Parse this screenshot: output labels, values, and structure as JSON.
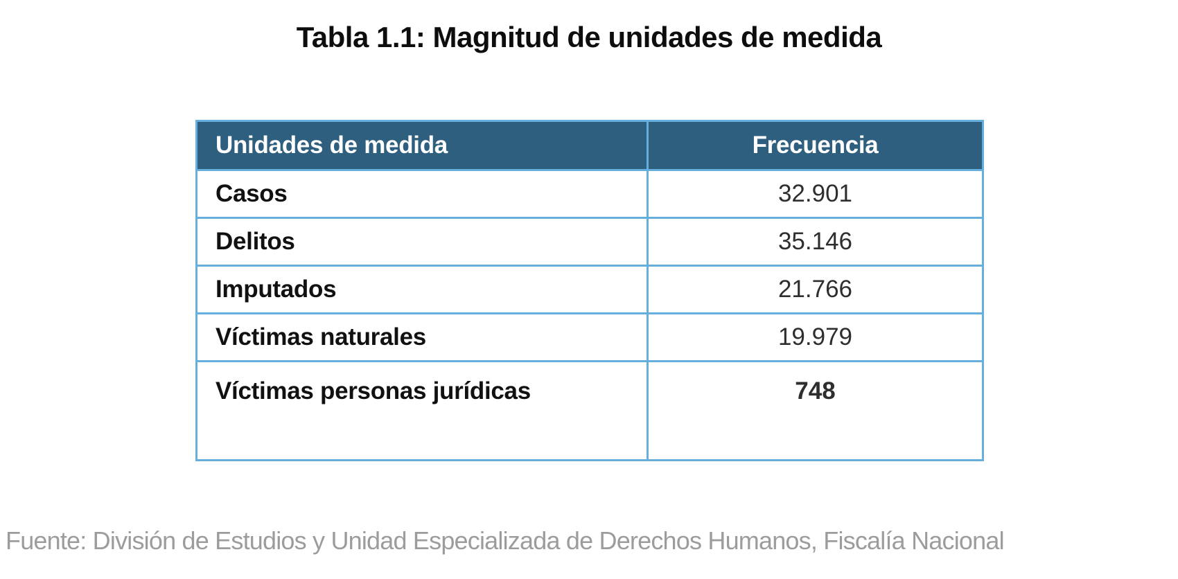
{
  "page": {
    "title": "Tabla 1.1: Magnitud de unidades de medida",
    "source_note": "Fuente: División de Estudios y Unidad Especializada de Derechos Humanos, Fiscalía Nacional"
  },
  "table": {
    "columns": [
      {
        "label": "Unidades de medida"
      },
      {
        "label": "Frecuencia"
      }
    ],
    "rows": [
      {
        "label": "Casos",
        "value": "32.901"
      },
      {
        "label": "Delitos",
        "value": "35.146"
      },
      {
        "label": "Imputados",
        "value": "21.766"
      },
      {
        "label": "Víctimas naturales",
        "value": "19.979"
      },
      {
        "label": "Víctimas personas jurídicas",
        "value": "748"
      }
    ]
  },
  "chart_data": {
    "type": "table",
    "title": "Tabla 1.1: Magnitud de unidades de medida",
    "columns": [
      "Unidades de medida",
      "Frecuencia"
    ],
    "categories": [
      "Casos",
      "Delitos",
      "Imputados",
      "Víctimas naturales",
      "Víctimas personas jurídicas"
    ],
    "values": [
      32901,
      35146,
      21766,
      19979,
      748
    ],
    "source": "Fuente: División de Estudios y Unidad Especializada de Derechos Humanos, Fiscalía Nacional"
  },
  "colors": {
    "header_bg": "#2e5f7e",
    "header_text": "#ffffff",
    "border": "#66aede",
    "label_text": "#111111",
    "value_text": "#2e2e2e",
    "source_text": "#9c9c9c",
    "title_text": "#0d0d0d"
  }
}
